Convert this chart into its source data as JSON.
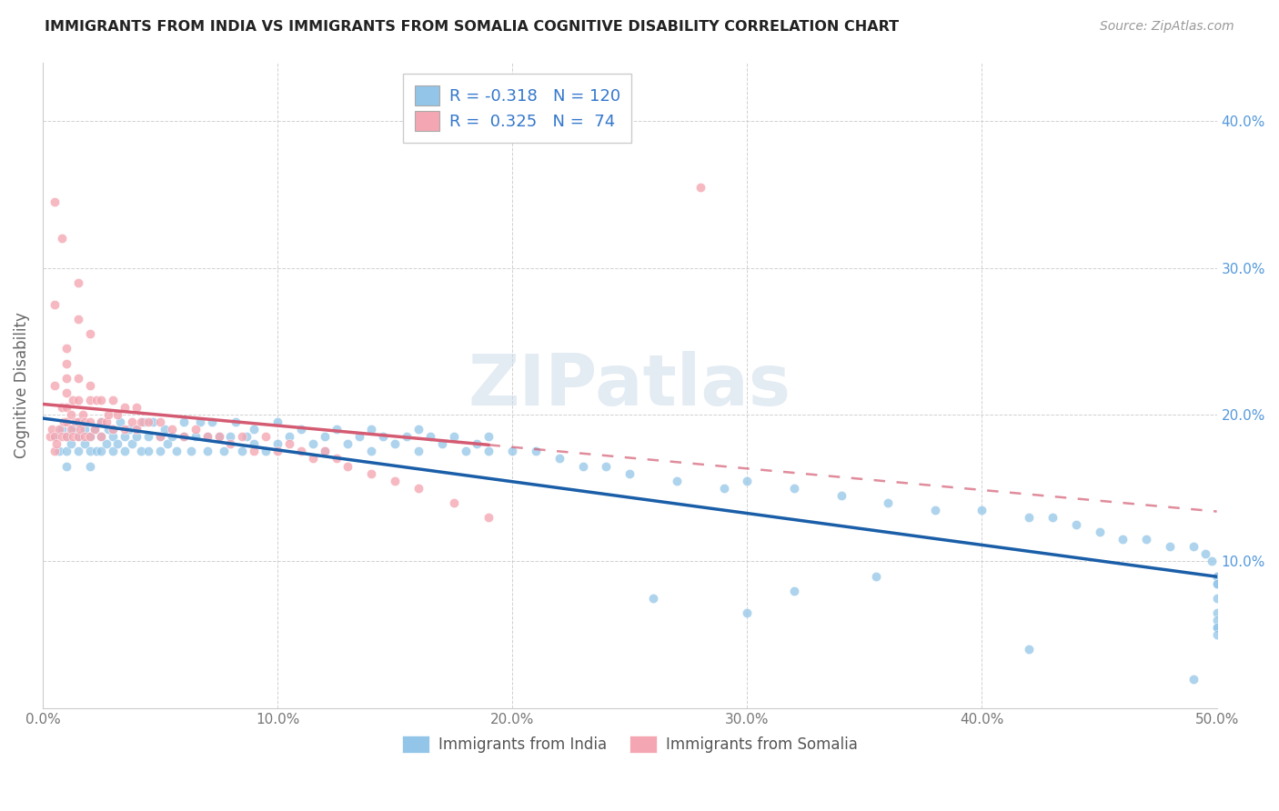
{
  "title": "IMMIGRANTS FROM INDIA VS IMMIGRANTS FROM SOMALIA COGNITIVE DISABILITY CORRELATION CHART",
  "source": "Source: ZipAtlas.com",
  "ylabel": "Cognitive Disability",
  "xlim": [
    0.0,
    0.5
  ],
  "ylim": [
    0.0,
    0.44
  ],
  "x_ticks": [
    0.0,
    0.1,
    0.2,
    0.3,
    0.4,
    0.5
  ],
  "x_tick_labels": [
    "0.0%",
    "10.0%",
    "20.0%",
    "30.0%",
    "40.0%",
    "50.0%"
  ],
  "y_ticks": [
    0.1,
    0.2,
    0.3,
    0.4
  ],
  "y_tick_labels": [
    "10.0%",
    "20.0%",
    "30.0%",
    "40.0%"
  ],
  "india_color": "#92C5E8",
  "somalia_color": "#F4A7B2",
  "india_line_color": "#1A5EA8",
  "somalia_line_color": "#D45B72",
  "india_R": -0.318,
  "india_N": 120,
  "somalia_R": 0.325,
  "somalia_N": 74,
  "watermark": "ZIPatlas",
  "legend_label_india": "Immigrants from India",
  "legend_label_somalia": "Immigrants from Somalia",
  "india_scatter_x": [
    0.005,
    0.007,
    0.008,
    0.01,
    0.01,
    0.01,
    0.012,
    0.013,
    0.015,
    0.015,
    0.015,
    0.018,
    0.018,
    0.02,
    0.02,
    0.02,
    0.022,
    0.023,
    0.025,
    0.025,
    0.025,
    0.027,
    0.028,
    0.03,
    0.03,
    0.03,
    0.032,
    0.033,
    0.035,
    0.035,
    0.037,
    0.038,
    0.04,
    0.04,
    0.042,
    0.043,
    0.045,
    0.045,
    0.047,
    0.05,
    0.05,
    0.052,
    0.053,
    0.055,
    0.057,
    0.06,
    0.06,
    0.063,
    0.065,
    0.067,
    0.07,
    0.07,
    0.072,
    0.075,
    0.077,
    0.08,
    0.082,
    0.085,
    0.087,
    0.09,
    0.09,
    0.095,
    0.1,
    0.1,
    0.105,
    0.11,
    0.115,
    0.12,
    0.12,
    0.125,
    0.13,
    0.135,
    0.14,
    0.14,
    0.145,
    0.15,
    0.155,
    0.16,
    0.16,
    0.165,
    0.17,
    0.175,
    0.18,
    0.185,
    0.19,
    0.19,
    0.2,
    0.21,
    0.22,
    0.23,
    0.24,
    0.25,
    0.27,
    0.29,
    0.3,
    0.32,
    0.34,
    0.36,
    0.38,
    0.4,
    0.42,
    0.43,
    0.44,
    0.45,
    0.46,
    0.47,
    0.48,
    0.49,
    0.495,
    0.498,
    0.5,
    0.5,
    0.5,
    0.5,
    0.5,
    0.5,
    0.5,
    0.5,
    0.5,
    0.5
  ],
  "india_scatter_y": [
    0.185,
    0.175,
    0.19,
    0.185,
    0.175,
    0.165,
    0.18,
    0.19,
    0.185,
    0.175,
    0.195,
    0.18,
    0.19,
    0.185,
    0.175,
    0.165,
    0.19,
    0.175,
    0.185,
    0.175,
    0.195,
    0.18,
    0.19,
    0.185,
    0.175,
    0.19,
    0.18,
    0.195,
    0.185,
    0.175,
    0.19,
    0.18,
    0.185,
    0.19,
    0.175,
    0.195,
    0.185,
    0.175,
    0.195,
    0.185,
    0.175,
    0.19,
    0.18,
    0.185,
    0.175,
    0.195,
    0.185,
    0.175,
    0.185,
    0.195,
    0.185,
    0.175,
    0.195,
    0.185,
    0.175,
    0.185,
    0.195,
    0.175,
    0.185,
    0.18,
    0.19,
    0.175,
    0.195,
    0.18,
    0.185,
    0.19,
    0.18,
    0.185,
    0.175,
    0.19,
    0.18,
    0.185,
    0.19,
    0.175,
    0.185,
    0.18,
    0.185,
    0.19,
    0.175,
    0.185,
    0.18,
    0.185,
    0.175,
    0.18,
    0.185,
    0.175,
    0.175,
    0.175,
    0.17,
    0.165,
    0.165,
    0.16,
    0.155,
    0.15,
    0.155,
    0.15,
    0.145,
    0.14,
    0.135,
    0.135,
    0.13,
    0.13,
    0.125,
    0.12,
    0.115,
    0.115,
    0.11,
    0.11,
    0.105,
    0.1,
    0.09,
    0.09,
    0.085,
    0.085,
    0.075,
    0.065,
    0.055,
    0.06,
    0.055,
    0.05
  ],
  "somalia_scatter_x": [
    0.003,
    0.004,
    0.005,
    0.005,
    0.005,
    0.006,
    0.007,
    0.008,
    0.008,
    0.009,
    0.01,
    0.01,
    0.01,
    0.01,
    0.01,
    0.01,
    0.01,
    0.012,
    0.012,
    0.013,
    0.013,
    0.014,
    0.015,
    0.015,
    0.015,
    0.015,
    0.016,
    0.017,
    0.018,
    0.018,
    0.02,
    0.02,
    0.02,
    0.02,
    0.022,
    0.023,
    0.025,
    0.025,
    0.025,
    0.027,
    0.028,
    0.03,
    0.03,
    0.032,
    0.035,
    0.035,
    0.038,
    0.04,
    0.04,
    0.042,
    0.045,
    0.05,
    0.05,
    0.055,
    0.06,
    0.065,
    0.07,
    0.075,
    0.08,
    0.085,
    0.09,
    0.095,
    0.1,
    0.105,
    0.11,
    0.115,
    0.12,
    0.125,
    0.13,
    0.14,
    0.15,
    0.16,
    0.175,
    0.19
  ],
  "somalia_scatter_y": [
    0.185,
    0.19,
    0.185,
    0.22,
    0.175,
    0.18,
    0.19,
    0.185,
    0.205,
    0.195,
    0.185,
    0.195,
    0.205,
    0.215,
    0.225,
    0.235,
    0.245,
    0.19,
    0.2,
    0.185,
    0.21,
    0.195,
    0.185,
    0.195,
    0.21,
    0.225,
    0.19,
    0.2,
    0.185,
    0.195,
    0.185,
    0.195,
    0.21,
    0.22,
    0.19,
    0.21,
    0.185,
    0.195,
    0.21,
    0.195,
    0.2,
    0.19,
    0.21,
    0.2,
    0.19,
    0.205,
    0.195,
    0.19,
    0.205,
    0.195,
    0.195,
    0.185,
    0.195,
    0.19,
    0.185,
    0.19,
    0.185,
    0.185,
    0.18,
    0.185,
    0.175,
    0.185,
    0.175,
    0.18,
    0.175,
    0.17,
    0.175,
    0.17,
    0.165,
    0.16,
    0.155,
    0.15,
    0.14,
    0.13
  ],
  "somalia_extra_high_x": [
    0.005,
    0.005,
    0.008,
    0.015,
    0.015,
    0.02,
    0.28
  ],
  "somalia_extra_high_y": [
    0.275,
    0.345,
    0.32,
    0.29,
    0.265,
    0.255,
    0.355
  ],
  "india_extra_low_x": [
    0.26,
    0.3,
    0.32,
    0.355,
    0.42,
    0.49
  ],
  "india_extra_low_y": [
    0.075,
    0.065,
    0.08,
    0.09,
    0.04,
    0.02
  ]
}
